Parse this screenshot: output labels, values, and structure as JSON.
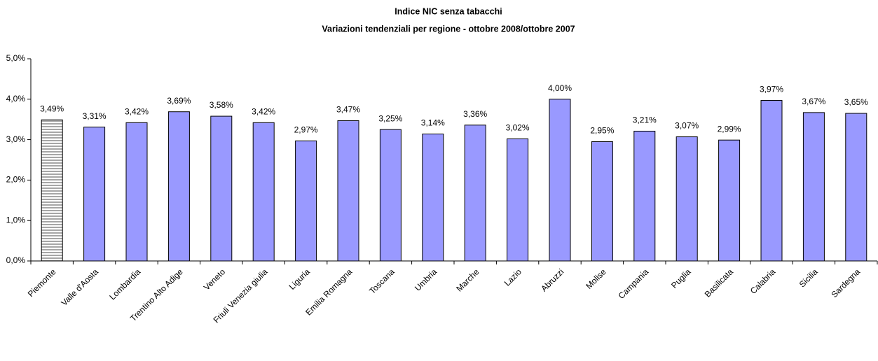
{
  "chart_data": {
    "type": "bar",
    "title": "Indice NIC senza tabacchi",
    "subtitle": "Variazioni tendenziali per regione -  ottobre 2008/ottobre 2007",
    "categories": [
      "Piemonte",
      "Valle d'Aosta",
      "Lombardia",
      "Trentino Alto Adige",
      "Veneto",
      "Friuli Venezia giulia",
      "Liguria",
      "Emilia Romagna",
      "Toscana",
      "Umbria",
      "Marche",
      "Lazio",
      "Abruzzi",
      "Molise",
      "Campania",
      "Puglia",
      "Basilicata",
      "Calabria",
      "Sicilia",
      "Sardegna"
    ],
    "values": [
      3.49,
      3.31,
      3.42,
      3.69,
      3.58,
      3.42,
      2.97,
      3.47,
      3.25,
      3.14,
      3.36,
      3.02,
      4.0,
      2.95,
      3.21,
      3.07,
      2.99,
      3.97,
      3.67,
      3.65
    ],
    "value_labels": [
      "3,49%",
      "3,31%",
      "3,42%",
      "3,69%",
      "3,58%",
      "3,42%",
      "2,97%",
      "3,47%",
      "3,25%",
      "3,14%",
      "3,36%",
      "3,02%",
      "4,00%",
      "2,95%",
      "3,21%",
      "3,07%",
      "2,99%",
      "3,97%",
      "3,67%",
      "3,65%"
    ],
    "color": "#9999ff",
    "patterns": [
      "stripes",
      "solid",
      "solid",
      "solid",
      "solid",
      "solid",
      "solid",
      "solid",
      "solid",
      "solid",
      "solid",
      "solid",
      "solid",
      "solid",
      "solid",
      "solid",
      "solid",
      "solid",
      "solid",
      "solid"
    ],
    "stripe_color": "#a6a6a6",
    "ylim": [
      0,
      5
    ],
    "yticks": [
      {
        "value": 0,
        "label": "0,0%"
      },
      {
        "value": 1,
        "label": "1,0%"
      },
      {
        "value": 2,
        "label": "2,0%"
      },
      {
        "value": 3,
        "label": "3,0%"
      },
      {
        "value": 4,
        "label": "4,0%"
      },
      {
        "value": 5,
        "label": "5,0%"
      }
    ],
    "grid": false
  }
}
